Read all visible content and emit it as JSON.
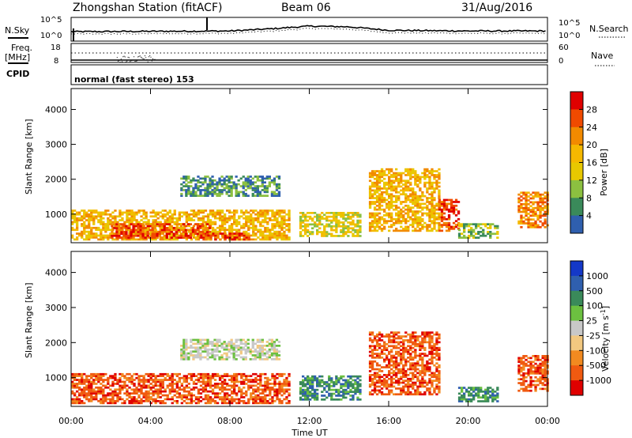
{
  "header": {
    "station": "Zhongshan Station (fitACF)",
    "beam": "Beam 06",
    "date": "31/Aug/2016"
  },
  "noise_panel": {
    "label_left": "N.Sky",
    "label_right": "N.Search",
    "ticks_left": [
      "10^5",
      "10^0"
    ],
    "ticks_right": [
      "10^5",
      "10^0"
    ]
  },
  "freq_panel": {
    "label_line1": "Freq.",
    "label_line2": "[MHz]",
    "label_right": "Nave",
    "ticks_left": [
      "18",
      "8"
    ],
    "ticks_right": [
      "60",
      "0"
    ]
  },
  "cpid_panel": {
    "label": "CPID",
    "mode_text": "normal (fast stereo) 153"
  },
  "power_panel": {
    "ylabel": "Slant Range [km]",
    "yticks": [
      "4000",
      "3000",
      "2000",
      "1000"
    ],
    "colorbar_label": "Power [dB]",
    "colorbar_ticks": [
      "28",
      "24",
      "20",
      "16",
      "12",
      "8",
      "4"
    ],
    "colorbar_colors": [
      "#e00000",
      "#f04a00",
      "#f28a00",
      "#f5b800",
      "#e8c800",
      "#8cc040",
      "#3a8a5a",
      "#2f5fae",
      "#1020e0"
    ]
  },
  "velocity_panel": {
    "ylabel": "Slant Range [km]",
    "yticks": [
      "4000",
      "3000",
      "2000",
      "1000"
    ],
    "colorbar_label": "Velocity [m s",
    "colorbar_label_sup": "-1",
    "colorbar_label_end": "]",
    "colorbar_ticks": [
      "1000",
      "500",
      "100",
      "25",
      "-25",
      "-100",
      "-500",
      "-1000"
    ],
    "colorbar_colors": [
      "#1438c8",
      "#2f5fae",
      "#3a8a5a",
      "#6cc040",
      "#c8c8c8",
      "#f2c880",
      "#f28a20",
      "#f05a10",
      "#e00000"
    ]
  },
  "xaxis": {
    "label": "Time UT",
    "ticks": [
      "00:00",
      "04:00",
      "08:00",
      "12:00",
      "16:00",
      "20:00",
      "00:00"
    ]
  },
  "chart_data": {
    "type": "heatmap",
    "title": "Zhongshan Station (fitACF)",
    "subtitle": "Beam 06 — 31/Aug/2016",
    "xlabel": "Time UT",
    "ylabel": "Slant Range [km]",
    "x_range_hours": [
      0,
      24
    ],
    "y_range_km": [
      180,
      4600
    ],
    "panels": [
      {
        "name": "Power [dB]",
        "range": [
          0,
          32
        ],
        "regions": [
          {
            "t": [
              0.0,
              11.0
            ],
            "r": [
              250,
              1100
            ],
            "dominant_dB": 20
          },
          {
            "t": [
              2.0,
              7.0
            ],
            "r": [
              300,
              700
            ],
            "dominant_dB": 26
          },
          {
            "t": [
              6.5,
              9.0
            ],
            "r": [
              250,
              450
            ],
            "dominant_dB": 28
          },
          {
            "t": [
              5.5,
              10.5
            ],
            "r": [
              1500,
              2100
            ],
            "dominant_dB": 8
          },
          {
            "t": [
              11.5,
              14.5
            ],
            "r": [
              350,
              1050
            ],
            "dominant_dB": 16
          },
          {
            "t": [
              15.0,
              18.5
            ],
            "r": [
              500,
              2300
            ],
            "dominant_dB": 18
          },
          {
            "t": [
              18.5,
              19.5
            ],
            "r": [
              500,
              1400
            ],
            "dominant_dB": 26
          },
          {
            "t": [
              19.5,
              21.5
            ],
            "r": [
              300,
              700
            ],
            "dominant_dB": 12
          },
          {
            "t": [
              22.5,
              24.0
            ],
            "r": [
              600,
              1600
            ],
            "dominant_dB": 24
          }
        ]
      },
      {
        "name": "Velocity [m s-1]",
        "range": [
          -1000,
          1000
        ],
        "regions": [
          {
            "t": [
              0.0,
              11.0
            ],
            "r": [
              250,
              1100
            ],
            "dominant_ms": -300
          },
          {
            "t": [
              5.5,
              10.5
            ],
            "r": [
              1500,
              2100
            ],
            "dominant_ms": 0
          },
          {
            "t": [
              11.5,
              14.5
            ],
            "r": [
              350,
              1050
            ],
            "dominant_ms": 200
          },
          {
            "t": [
              15.0,
              18.5
            ],
            "r": [
              500,
              2300
            ],
            "dominant_ms": -400
          },
          {
            "t": [
              19.5,
              21.5
            ],
            "r": [
              300,
              700
            ],
            "dominant_ms": 80
          },
          {
            "t": [
              22.5,
              24.0
            ],
            "r": [
              600,
              1600
            ],
            "dominant_ms": -200
          }
        ]
      }
    ],
    "noise_sky_series": {
      "x": [
        0,
        4,
        8,
        10,
        12,
        14,
        16,
        20,
        24
      ],
      "log10_y": [
        1.8,
        1.9,
        2.0,
        2.6,
        3.4,
        3.2,
        2.2,
        2.0,
        2.0
      ]
    },
    "frequency_MHz": {
      "x": [
        0,
        24
      ],
      "y": [
        11.0,
        11.0
      ]
    },
    "nave": {
      "x": [
        0,
        24
      ],
      "y": [
        25,
        25
      ]
    }
  }
}
